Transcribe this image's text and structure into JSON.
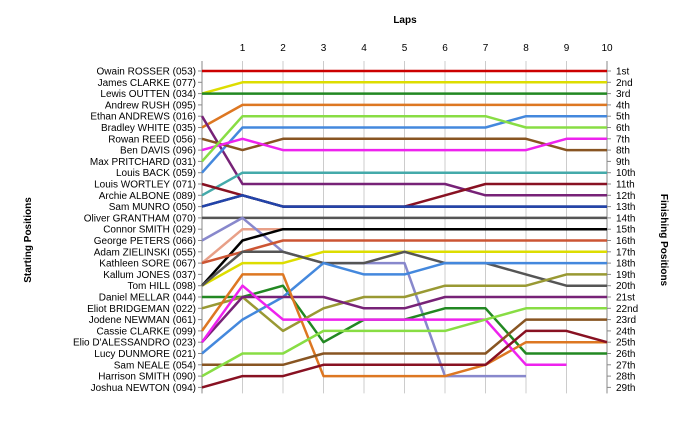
{
  "chart_data": {
    "type": "line",
    "title": "",
    "x_axis_title": "Laps",
    "left_axis_title": "Starting Positions",
    "right_axis_title": "Finishing Positions",
    "laps": [
      0,
      1,
      2,
      3,
      4,
      5,
      6,
      7,
      8,
      9,
      10
    ],
    "lap_labels": [
      "1",
      "2",
      "3",
      "4",
      "5",
      "6",
      "7",
      "8",
      "9",
      "10"
    ],
    "finishing_labels": [
      "1st",
      "2nd",
      "3rd",
      "4th",
      "5th",
      "6th",
      "7th",
      "8th",
      "9th",
      "10th",
      "11th",
      "12th",
      "13th",
      "14th",
      "15th",
      "16th",
      "17th",
      "18th",
      "19th",
      "20th",
      "21st",
      "22nd",
      "23rd",
      "24th",
      "25th",
      "26th",
      "27th",
      "28th",
      "29th"
    ],
    "series": [
      {
        "name": "Owain ROSSER (053)",
        "color": "#cc0000",
        "positions": [
          1,
          1,
          1,
          1,
          1,
          1,
          1,
          1,
          1,
          1,
          1
        ]
      },
      {
        "name": "James CLARKE (077)",
        "color": "#dddd00",
        "positions": [
          3,
          2,
          2,
          2,
          2,
          2,
          2,
          2,
          2,
          2,
          2
        ]
      },
      {
        "name": "Lewis OUTTEN (034)",
        "color": "#228822",
        "positions": [
          3,
          3,
          3,
          3,
          3,
          3,
          3,
          3,
          3,
          3,
          3
        ]
      },
      {
        "name": "Andrew RUSH (095)",
        "color": "#dd7722",
        "positions": [
          6,
          4,
          4,
          4,
          4,
          4,
          4,
          4,
          4,
          4,
          4
        ]
      },
      {
        "name": "Ethan ANDREWS (016)",
        "color": "#772277",
        "positions": [
          5,
          11,
          11,
          11,
          11,
          11,
          11,
          12,
          12,
          12,
          12
        ]
      },
      {
        "name": "Bradley WHITE (035)",
        "color": "#4488dd",
        "positions": [
          10,
          6,
          6,
          6,
          6,
          6,
          6,
          6,
          5,
          5,
          5
        ]
      },
      {
        "name": "Rowan REED (056)",
        "color": "#885522",
        "positions": [
          7,
          8,
          7,
          7,
          7,
          7,
          7,
          7,
          7,
          8,
          8
        ]
      },
      {
        "name": "Ben DAVIS (096)",
        "color": "#ee22ee",
        "positions": [
          8,
          7,
          8,
          8,
          8,
          8,
          8,
          8,
          8,
          7,
          7
        ]
      },
      {
        "name": "Max PRITCHARD (031)",
        "color": "#88dd44",
        "positions": [
          9,
          5,
          5,
          5,
          5,
          5,
          5,
          5,
          6,
          6,
          6
        ]
      },
      {
        "name": "Louis BACK (059)",
        "color": "#44aaaa",
        "positions": [
          12,
          10,
          10,
          10,
          10,
          10,
          10,
          10,
          10,
          10,
          10
        ]
      },
      {
        "name": "Louis WORTLEY (071)",
        "color": "#881122",
        "positions": [
          11,
          12,
          13,
          13,
          13,
          13,
          12,
          11,
          11,
          11,
          11
        ]
      },
      {
        "name": "Archie ALBONE (089)",
        "color": "#222255",
        "positions": [
          13,
          12,
          13,
          13,
          13,
          13,
          13,
          13,
          13,
          13,
          13
        ]
      },
      {
        "name": "Sam MUNRO (050)",
        "color": "#2244aa",
        "positions": [
          13,
          12,
          13,
          13,
          13,
          13,
          13,
          13,
          13,
          13,
          13
        ]
      },
      {
        "name": "Oliver GRANTHAM (070)",
        "color": "#555555",
        "positions": [
          14,
          14,
          14,
          14,
          14,
          14,
          14,
          14,
          14,
          14,
          14
        ]
      },
      {
        "name": "Connor SMITH (029)",
        "color": "#e8a088",
        "positions": [
          18,
          15,
          15,
          15,
          15,
          15,
          15,
          15,
          15,
          15,
          15
        ]
      },
      {
        "name": "George PETERS (066)",
        "color": "#8888cc",
        "positions": [
          16,
          14,
          17,
          18,
          18,
          18,
          28,
          28,
          28
        ]
      },
      {
        "name": "Adam ZIELINSKI (055)",
        "color": "#000000",
        "positions": [
          20,
          16,
          15,
          15,
          15,
          15,
          15,
          15,
          15,
          15,
          15
        ]
      },
      {
        "name": "Kathleen SORE (067)",
        "color": "#cc5533",
        "positions": [
          18,
          17,
          16,
          16,
          16,
          16,
          16,
          16,
          16,
          16,
          16
        ]
      },
      {
        "name": "Kallum JONES (037)",
        "color": "#dddd00",
        "positions": [
          20,
          18,
          18,
          17,
          17,
          17,
          17,
          17,
          17,
          17,
          17
        ]
      },
      {
        "name": "Tom HILL (098)",
        "color": "#555555",
        "positions": [
          20,
          17,
          17,
          18,
          18,
          17,
          18,
          18,
          19,
          20,
          20
        ]
      },
      {
        "name": "Daniel MELLAR (044)",
        "color": "#228822",
        "positions": [
          21,
          21,
          20,
          25,
          23,
          23,
          22,
          22,
          26,
          26,
          26
        ]
      },
      {
        "name": "Eliot BRIDGEMAN (022)",
        "color": "#999933",
        "positions": [
          22,
          21,
          24,
          22,
          21,
          21,
          20,
          20,
          20,
          19,
          19
        ]
      },
      {
        "name": "Jodene NEWMAN (061)",
        "color": "#4488dd",
        "positions": [
          26,
          23,
          21,
          18,
          19,
          19,
          18,
          18,
          18,
          18,
          18
        ]
      },
      {
        "name": "Cassie CLARKE (099)",
        "color": "#772277",
        "positions": [
          25,
          21,
          21,
          21,
          22,
          22,
          21,
          21,
          21,
          21,
          21
        ]
      },
      {
        "name": "Elio D'ALESSANDRO (023)",
        "color": "#dd7722",
        "positions": [
          24,
          19,
          19,
          28,
          28,
          28,
          28,
          27,
          25,
          25,
          25
        ]
      },
      {
        "name": "Lucy DUNMORE (021)",
        "color": "#ee22ee",
        "positions": [
          25,
          20,
          23,
          23,
          23,
          23,
          23,
          23,
          27,
          27
        ]
      },
      {
        "name": "Sam NEALE (054)",
        "color": "#885522",
        "positions": [
          27,
          27,
          27,
          26,
          26,
          26,
          26,
          26,
          23,
          23,
          23
        ]
      },
      {
        "name": "Harrison SMITH (090)",
        "color": "#88dd44",
        "positions": [
          28,
          26,
          26,
          24,
          24,
          24,
          24,
          23,
          22,
          22,
          22
        ]
      },
      {
        "name": "Joshua NEWTON (094)",
        "color": "#881122",
        "positions": [
          29,
          28,
          28,
          27,
          27,
          27,
          27,
          27,
          24,
          24,
          25
        ]
      }
    ]
  }
}
